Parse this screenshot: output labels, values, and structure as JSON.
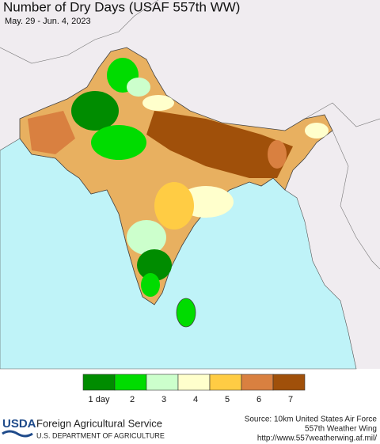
{
  "header": {
    "title": "Number of Dry Days (USAF 557th WW)",
    "subtitle": "May. 29 - Jun. 4, 2023"
  },
  "legend": {
    "items": [
      {
        "label": "1 day",
        "color": "#008c00"
      },
      {
        "label": "2",
        "color": "#00dc00"
      },
      {
        "label": "3",
        "color": "#ccffcc"
      },
      {
        "label": "4",
        "color": "#ffffcc"
      },
      {
        "label": "5",
        "color": "#ffcc44"
      },
      {
        "label": "6",
        "color": "#d98040"
      },
      {
        "label": "7",
        "color": "#a0500a"
      }
    ]
  },
  "footer": {
    "logo": "USDA",
    "agency": "Foreign Agricultural Service",
    "department": "U.S. DEPARTMENT OF AGRICULTURE",
    "source": [
      "Source: 10km United States Air Force",
      "557th Weather Wing",
      "http://www.557weatherwing.af.mil/"
    ]
  }
}
